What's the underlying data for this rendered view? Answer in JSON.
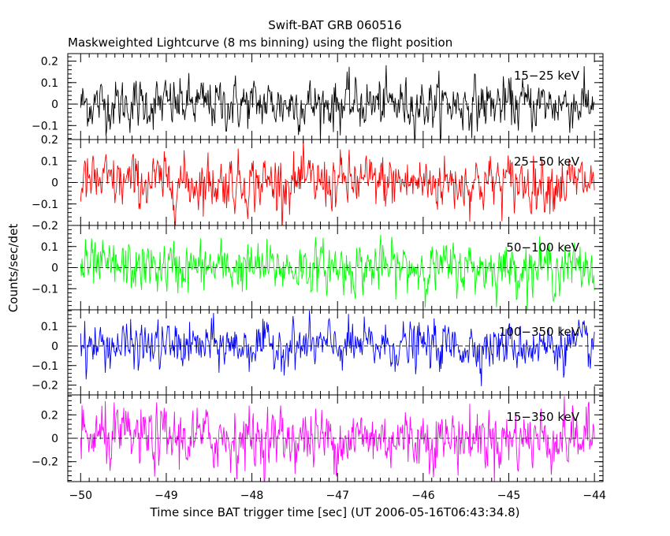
{
  "chart_data": {
    "type": "line",
    "title": "Swift-BAT GRB 060516",
    "subtitle": "Maskweighted Lightcurve (8 ms binning) using the flight position",
    "xlabel": "Time since BAT trigger time [sec] (UT 2006-05-16T06:43:34.8)",
    "ylabel": "Counts/sec/det",
    "xlim": [
      -50.15,
      -43.9
    ],
    "x_ticks": [
      -50,
      -49,
      -48,
      -47,
      -46,
      -45,
      -44
    ],
    "x_tick_labels": [
      "−50",
      "−49",
      "−48",
      "−47",
      "−46",
      "−45",
      "−44"
    ],
    "data_x_range": [
      -50,
      -44
    ],
    "bin_width_sec": 0.008,
    "grid": false,
    "panels": [
      {
        "name": "15−25 keV",
        "color": "#000000",
        "ylim": [
          -0.165,
          0.235
        ],
        "y_ticks": [
          -0.1,
          0,
          0.1,
          0.2
        ],
        "y_tick_labels": [
          "−0.1",
          "0",
          "0.1",
          "0.2"
        ],
        "noise_amplitude": 0.055
      },
      {
        "name": "25−50 keV",
        "color": "#ff0000",
        "ylim": [
          -0.2,
          0.2
        ],
        "y_ticks": [
          -0.2,
          -0.1,
          0,
          0.1,
          0.2
        ],
        "y_tick_labels": [
          "−0.2",
          "−0.1",
          "0",
          "0.1",
          "0.2"
        ],
        "noise_amplitude": 0.06
      },
      {
        "name": "50−100 keV",
        "color": "#00ff00",
        "ylim": [
          -0.2,
          0.2
        ],
        "y_ticks": [
          -0.1,
          0,
          0.1
        ],
        "y_tick_labels": [
          "−0.1",
          "0",
          "0.1"
        ],
        "noise_amplitude": 0.055
      },
      {
        "name": "100−350 keV",
        "color": "#0000ff",
        "ylim": [
          -0.25,
          0.185
        ],
        "y_ticks": [
          -0.2,
          -0.1,
          0,
          0.1
        ],
        "y_tick_labels": [
          "−0.2",
          "−0.1",
          "0",
          "0.1"
        ],
        "noise_amplitude": 0.055
      },
      {
        "name": "15−350 keV",
        "color": "#ff00ff",
        "ylim": [
          -0.37,
          0.37
        ],
        "y_ticks": [
          -0.2,
          0,
          0.2
        ],
        "y_tick_labels": [
          "−0.2",
          "0",
          "0.2"
        ],
        "noise_amplitude": 0.12
      }
    ]
  }
}
